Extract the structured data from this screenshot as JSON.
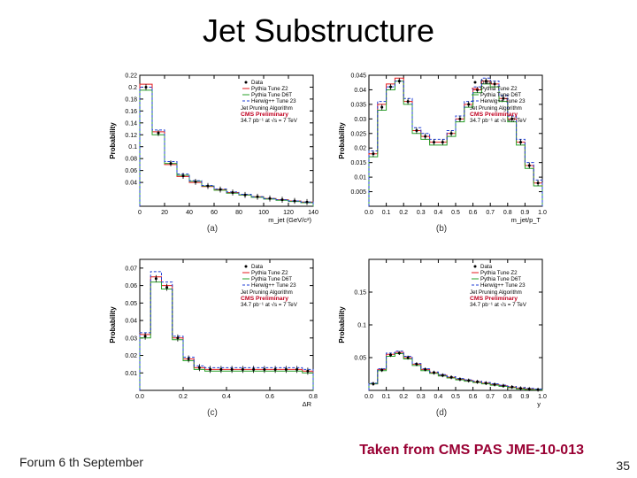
{
  "title": "Jet Substructure",
  "caption_text": "Taken from CMS PAS JME-10-013",
  "footer_left": "Forum 6 th September",
  "page_number": "35",
  "colors": {
    "title": "#000000",
    "caption": "#990033",
    "bg": "#ffffff",
    "hist_red": "#e41a1c",
    "hist_green": "#2aa02a",
    "hist_blue": "#1f3fd4",
    "data_points": "#000000"
  },
  "legend_common": {
    "items": [
      {
        "label": "Data",
        "marker": "point"
      },
      {
        "label": "Pythia Tune Z2",
        "color": "#e41a1c",
        "style": "hist"
      },
      {
        "label": "Pythia Tune D6T",
        "color": "#2aa02a",
        "style": "hist"
      },
      {
        "label": "Herwig++ Tune 23",
        "color": "#1f3fd4",
        "style": "hist-dashed"
      }
    ],
    "figure_title": "Jet Pruning Algorithm",
    "preliminary": "CMS Preliminary",
    "lumi": "34.7 pb⁻¹ at √s = 7 TeV"
  },
  "panels": [
    {
      "id": "a",
      "sublabel": "(a)",
      "type": "hist_with_points",
      "ylabel": "Probability",
      "xlabel": "m_jet  (GeV/c²)",
      "xlim": [
        0,
        140
      ],
      "xtick_step": 20,
      "ylim": [
        0,
        0.22
      ],
      "yticks": [
        0.04,
        0.06,
        0.08,
        0.1,
        0.12,
        0.14,
        0.16,
        0.18,
        0.2,
        0.22
      ],
      "x": [
        5,
        15,
        25,
        35,
        45,
        55,
        65,
        75,
        85,
        95,
        105,
        115,
        125,
        135
      ],
      "series": {
        "red": [
          0.205,
          0.125,
          0.07,
          0.05,
          0.04,
          0.033,
          0.028,
          0.023,
          0.019,
          0.016,
          0.013,
          0.011,
          0.009,
          0.007
        ],
        "green": [
          0.195,
          0.12,
          0.072,
          0.052,
          0.042,
          0.034,
          0.027,
          0.022,
          0.019,
          0.015,
          0.012,
          0.01,
          0.008,
          0.006
        ],
        "blue": [
          0.2,
          0.128,
          0.075,
          0.054,
          0.043,
          0.035,
          0.029,
          0.024,
          0.02,
          0.016,
          0.013,
          0.011,
          0.009,
          0.007
        ],
        "data": [
          0.2,
          0.123,
          0.072,
          0.051,
          0.041,
          0.034,
          0.028,
          0.023,
          0.019,
          0.016,
          0.013,
          0.011,
          0.009,
          0.007
        ],
        "data_err": 0.005
      }
    },
    {
      "id": "b",
      "sublabel": "(b)",
      "type": "hist_with_points",
      "ylabel": "Probability",
      "xlabel": "m_jet/p_T",
      "xlim": [
        0,
        1.0
      ],
      "xtick_step": 0.1,
      "ylim": [
        0,
        0.045
      ],
      "yticks": [
        0.005,
        0.01,
        0.015,
        0.02,
        0.025,
        0.03,
        0.035,
        0.04,
        0.045
      ],
      "x": [
        0.025,
        0.075,
        0.125,
        0.175,
        0.225,
        0.275,
        0.325,
        0.375,
        0.425,
        0.475,
        0.525,
        0.575,
        0.625,
        0.675,
        0.725,
        0.775,
        0.825,
        0.875,
        0.925,
        0.975
      ],
      "series": {
        "red": [
          0.018,
          0.035,
          0.042,
          0.044,
          0.036,
          0.026,
          0.024,
          0.022,
          0.022,
          0.025,
          0.03,
          0.035,
          0.04,
          0.043,
          0.042,
          0.037,
          0.03,
          0.022,
          0.014,
          0.008
        ],
        "green": [
          0.017,
          0.033,
          0.04,
          0.043,
          0.035,
          0.025,
          0.023,
          0.021,
          0.021,
          0.024,
          0.029,
          0.034,
          0.039,
          0.042,
          0.041,
          0.036,
          0.029,
          0.021,
          0.013,
          0.007
        ],
        "blue": [
          0.019,
          0.036,
          0.041,
          0.043,
          0.037,
          0.027,
          0.025,
          0.023,
          0.023,
          0.026,
          0.031,
          0.036,
          0.041,
          0.044,
          0.043,
          0.038,
          0.031,
          0.023,
          0.015,
          0.009
        ],
        "data": [
          0.018,
          0.034,
          0.041,
          0.043,
          0.036,
          0.026,
          0.024,
          0.022,
          0.022,
          0.025,
          0.03,
          0.035,
          0.04,
          0.043,
          0.042,
          0.037,
          0.03,
          0.022,
          0.014,
          0.008
        ],
        "data_err": 0.001
      }
    },
    {
      "id": "c",
      "sublabel": "(c)",
      "type": "hist_with_points",
      "ylabel": "Probability",
      "xlabel": "ΔR",
      "xlim": [
        0,
        0.8
      ],
      "xtick_step": 0.2,
      "ylim": [
        0,
        0.075
      ],
      "yticks": [
        0.01,
        0.02,
        0.03,
        0.04,
        0.05,
        0.06,
        0.07
      ],
      "x": [
        0.025,
        0.075,
        0.125,
        0.175,
        0.225,
        0.275,
        0.325,
        0.375,
        0.425,
        0.475,
        0.525,
        0.575,
        0.625,
        0.675,
        0.725,
        0.775
      ],
      "series": {
        "red": [
          0.032,
          0.065,
          0.06,
          0.03,
          0.018,
          0.013,
          0.012,
          0.012,
          0.012,
          0.012,
          0.012,
          0.012,
          0.012,
          0.012,
          0.012,
          0.011
        ],
        "green": [
          0.03,
          0.062,
          0.058,
          0.029,
          0.017,
          0.012,
          0.011,
          0.011,
          0.011,
          0.011,
          0.011,
          0.011,
          0.011,
          0.011,
          0.011,
          0.01
        ],
        "blue": [
          0.033,
          0.068,
          0.062,
          0.031,
          0.019,
          0.014,
          0.013,
          0.013,
          0.013,
          0.013,
          0.013,
          0.013,
          0.013,
          0.013,
          0.013,
          0.012
        ],
        "data": [
          0.031,
          0.064,
          0.059,
          0.03,
          0.018,
          0.013,
          0.012,
          0.012,
          0.012,
          0.012,
          0.012,
          0.012,
          0.012,
          0.012,
          0.012,
          0.011
        ],
        "data_err": 0.002
      }
    },
    {
      "id": "d",
      "sublabel": "(d)",
      "type": "hist_with_points",
      "ylabel": "Probability",
      "xlabel": "y",
      "xlim": [
        0,
        1.0
      ],
      "xtick_step": 0.1,
      "ylim": [
        0,
        0.2
      ],
      "yticks": [
        0.05,
        0.1,
        0.15
      ],
      "x": [
        0.025,
        0.075,
        0.125,
        0.175,
        0.225,
        0.275,
        0.325,
        0.375,
        0.425,
        0.475,
        0.525,
        0.575,
        0.625,
        0.675,
        0.725,
        0.775,
        0.825,
        0.875,
        0.925,
        0.975
      ],
      "series": {
        "red": [
          0.01,
          0.032,
          0.055,
          0.058,
          0.05,
          0.04,
          0.032,
          0.027,
          0.023,
          0.02,
          0.017,
          0.015,
          0.013,
          0.011,
          0.009,
          0.007,
          0.005,
          0.003,
          0.002,
          0.001
        ],
        "green": [
          0.01,
          0.03,
          0.052,
          0.056,
          0.048,
          0.038,
          0.03,
          0.026,
          0.022,
          0.019,
          0.016,
          0.014,
          0.012,
          0.01,
          0.008,
          0.006,
          0.004,
          0.002,
          0.001,
          0.001
        ],
        "blue": [
          0.011,
          0.033,
          0.057,
          0.06,
          0.052,
          0.041,
          0.033,
          0.028,
          0.024,
          0.021,
          0.018,
          0.016,
          0.014,
          0.012,
          0.01,
          0.008,
          0.006,
          0.004,
          0.003,
          0.002
        ],
        "data": [
          0.01,
          0.031,
          0.054,
          0.057,
          0.05,
          0.04,
          0.032,
          0.027,
          0.023,
          0.02,
          0.017,
          0.015,
          0.013,
          0.011,
          0.009,
          0.007,
          0.005,
          0.003,
          0.002,
          0.001
        ],
        "data_err": 0.003
      }
    }
  ]
}
